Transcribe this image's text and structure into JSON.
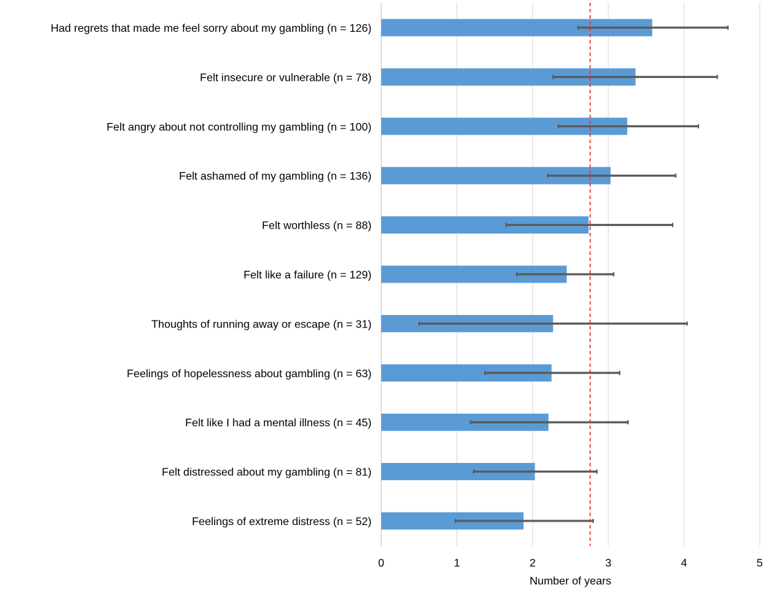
{
  "chart_data": {
    "type": "bar",
    "orientation": "horizontal",
    "categories": [
      "Had regrets that made me feel sorry about my gambling (n = 126)",
      "Felt insecure or vulnerable (n = 78)",
      "Felt angry about not controlling my gambling (n = 100)",
      "Felt ashamed of my gambling (n = 136)",
      "Felt worthless (n = 88)",
      "Felt like a failure (n = 129)",
      "Thoughts of running away or escape (n = 31)",
      "Feelings of hopelessness about gambling (n = 63)",
      "Felt like I had a mental illness (n = 45)",
      "Felt distressed about my gambling (n = 81)",
      "Feelings of extreme distress (n = 52)"
    ],
    "values": [
      3.58,
      3.36,
      3.25,
      3.03,
      2.74,
      2.45,
      2.27,
      2.25,
      2.21,
      2.03,
      1.88
    ],
    "error_low": [
      2.6,
      2.27,
      2.34,
      2.2,
      1.65,
      1.79,
      0.5,
      1.37,
      1.18,
      1.22,
      0.98
    ],
    "error_high": [
      4.58,
      4.44,
      4.19,
      3.89,
      3.85,
      3.07,
      4.04,
      3.15,
      3.26,
      2.85,
      2.8
    ],
    "reference_line": {
      "value": 2.76,
      "style": "dashed",
      "color": "#e8302a"
    },
    "xlabel": "Number of years",
    "ylabel": "",
    "title": "",
    "xlim": [
      0,
      5
    ],
    "xticks": [
      0,
      1,
      2,
      3,
      4,
      5
    ],
    "grid": "vertical",
    "colors": {
      "bar": "#5b9bd5",
      "error_bar": "#595959",
      "grid": "#d9d9d9"
    }
  }
}
